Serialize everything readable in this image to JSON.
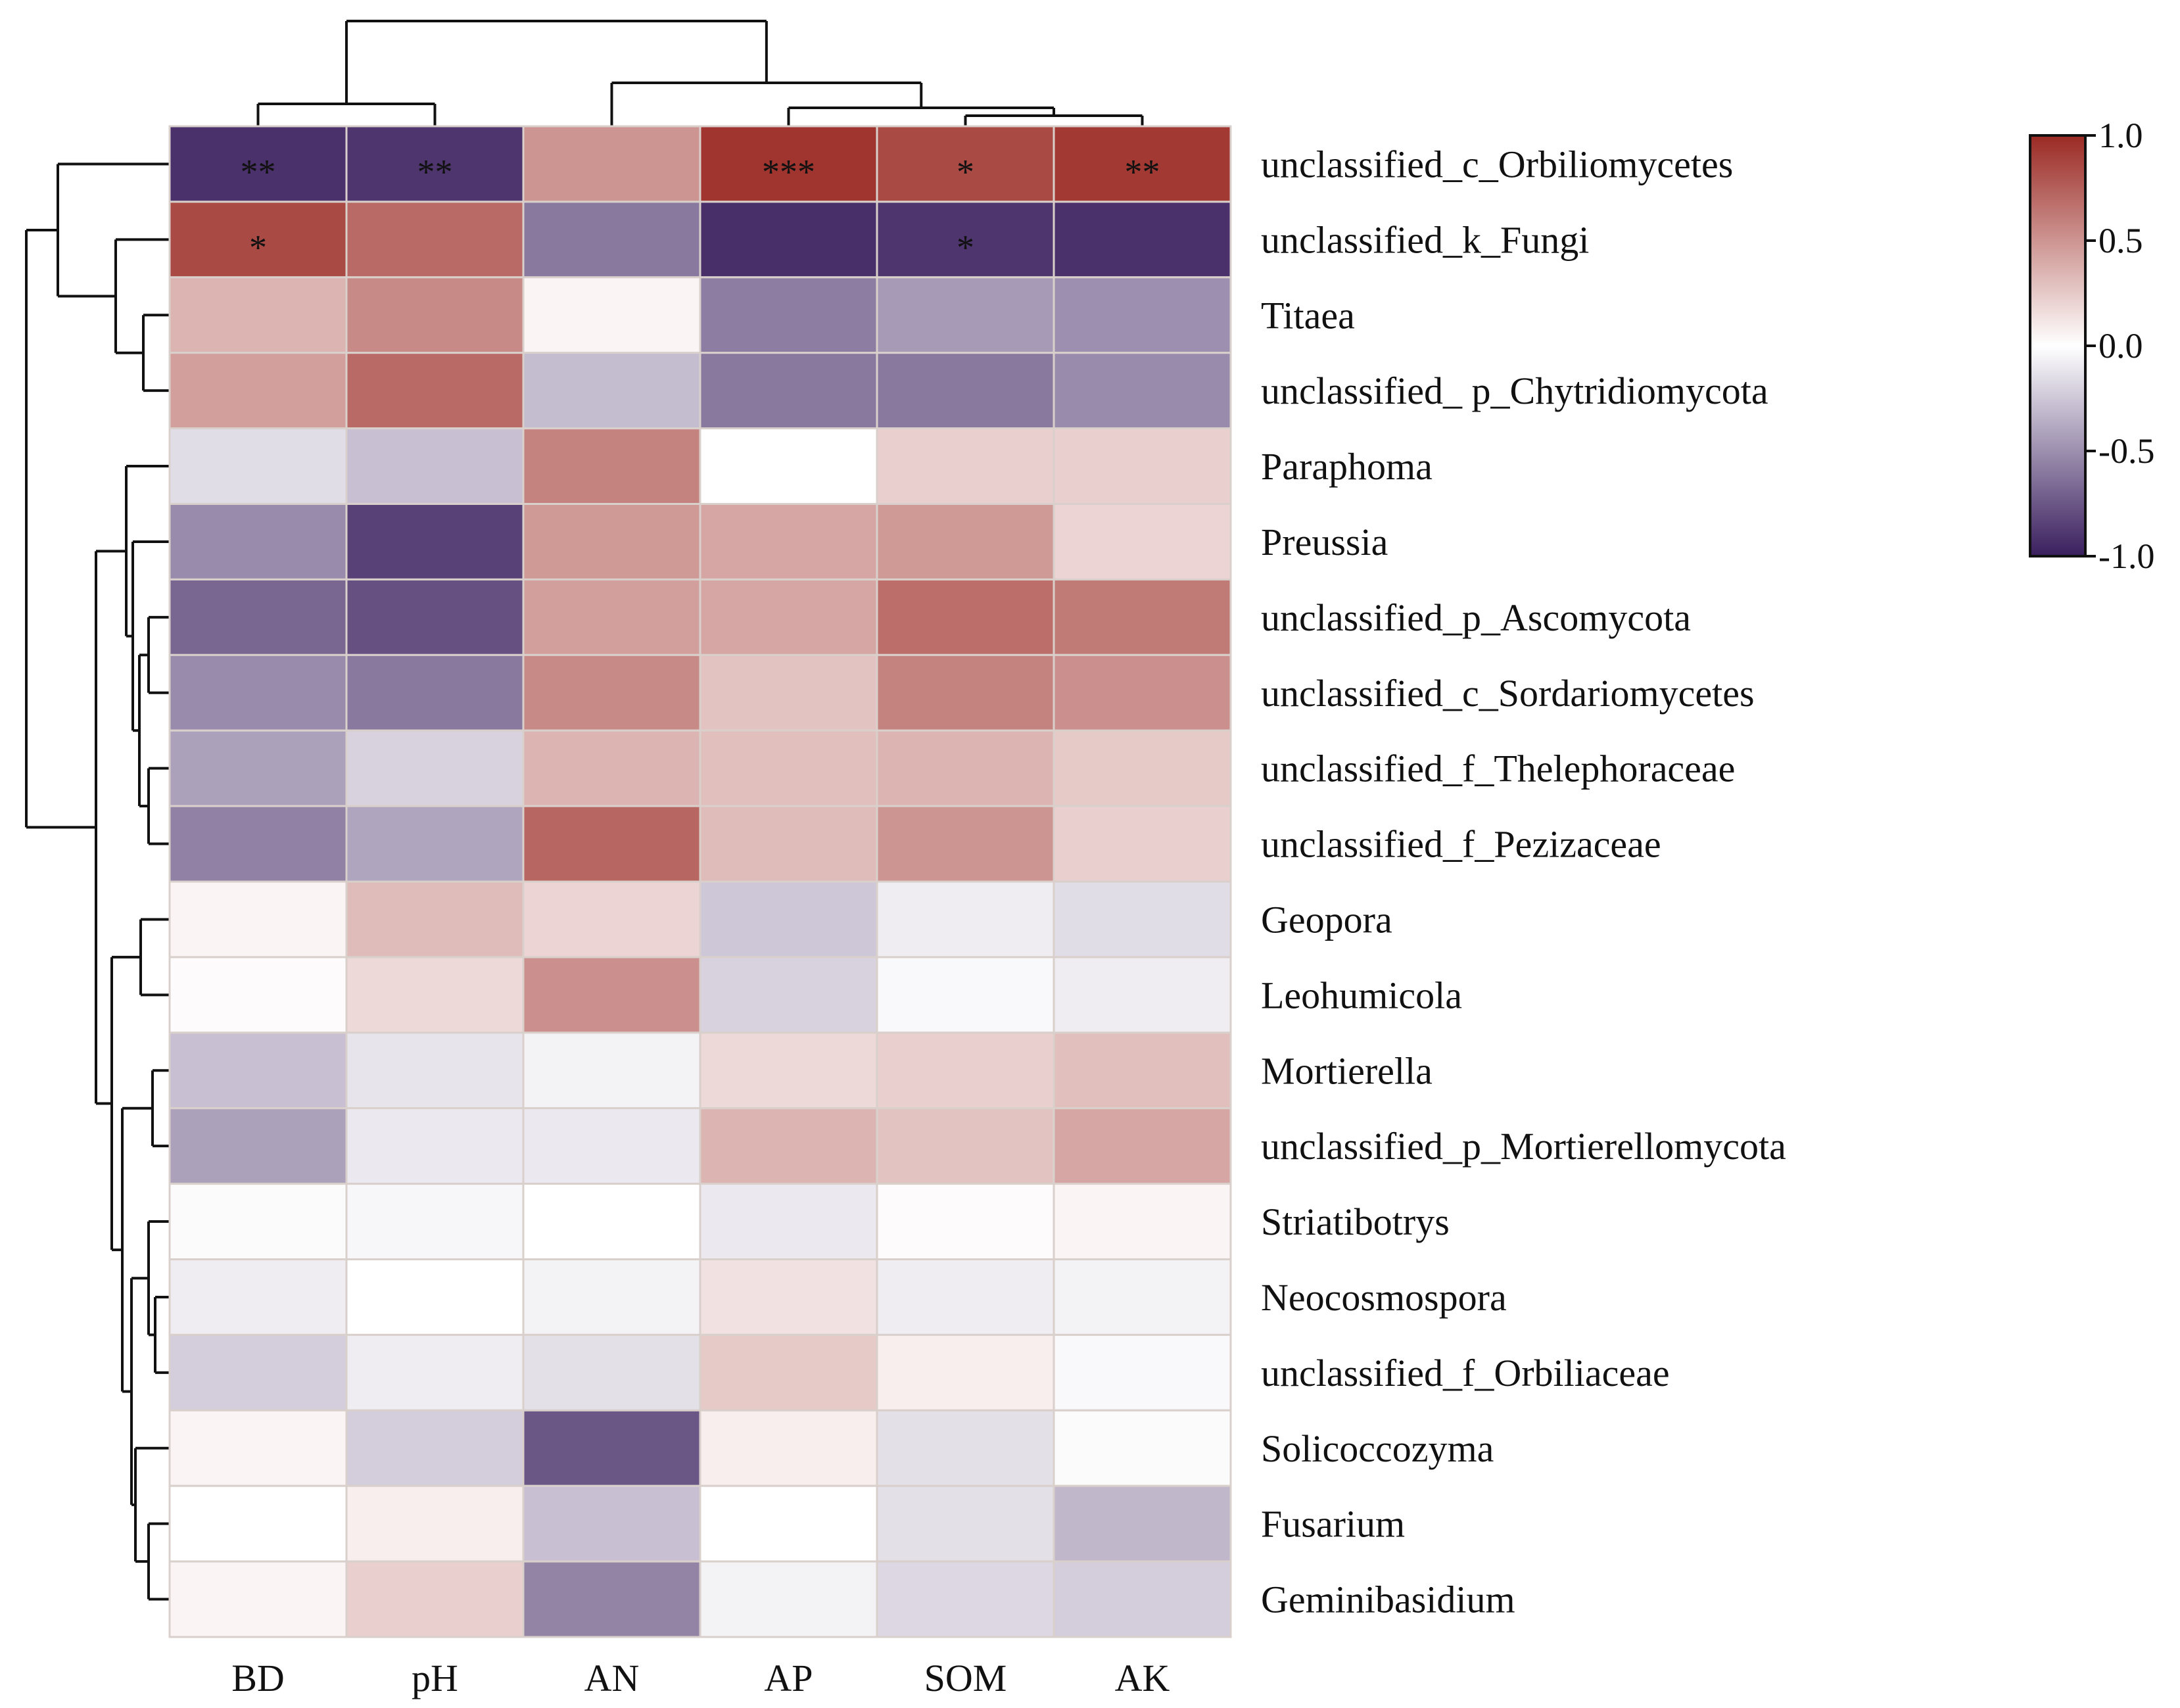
{
  "chart_data": {
    "type": "heatmap",
    "rows": [
      "unclassified_c_Orbiliomycetes",
      "unclassified_k_Fungi",
      "Titaea",
      "unclassified_ p_Chytridiomycota",
      "Paraphoma",
      "Preussia",
      "unclassified_p_Ascomycota",
      "unclassified_c_Sordariomycetes",
      "unclassified_f_Thelephoraceae",
      "unclassified_f_Pezizaceae",
      "Geopora",
      "Leohumicola",
      "Mortierella",
      "unclassified_p_Mortierellomycota",
      "Striatibotrys",
      "Neocosmospora",
      "unclassified_f_Orbiliaceae",
      "Solicoccozyma",
      "Fusarium",
      "Geminibasidium"
    ],
    "columns": [
      "BD",
      "pH",
      "AN",
      "AP",
      "SOM",
      "AK"
    ],
    "values": [
      [
        -0.92,
        -0.9,
        0.5,
        0.95,
        0.85,
        0.93
      ],
      [
        0.85,
        0.7,
        -0.6,
        -0.93,
        -0.9,
        -0.92
      ],
      [
        0.35,
        0.55,
        0.05,
        -0.58,
        -0.45,
        -0.5
      ],
      [
        0.45,
        0.7,
        -0.3,
        -0.6,
        -0.6,
        -0.52
      ],
      [
        -0.15,
        -0.28,
        0.58,
        0.0,
        0.22,
        0.22
      ],
      [
        -0.52,
        -0.85,
        0.48,
        0.42,
        0.48,
        0.2
      ],
      [
        -0.68,
        -0.78,
        0.45,
        0.42,
        0.68,
        0.62
      ],
      [
        -0.52,
        -0.6,
        0.55,
        0.28,
        0.58,
        0.52
      ],
      [
        -0.42,
        -0.2,
        0.35,
        0.3,
        0.35,
        0.25
      ],
      [
        -0.56,
        -0.4,
        0.72,
        0.32,
        0.5,
        0.22
      ],
      [
        0.05,
        0.32,
        0.2,
        -0.25,
        -0.08,
        -0.15
      ],
      [
        0.02,
        0.18,
        0.52,
        -0.2,
        -0.03,
        -0.08
      ],
      [
        -0.28,
        -0.12,
        -0.06,
        0.18,
        0.22,
        0.3
      ],
      [
        -0.42,
        -0.1,
        -0.1,
        0.35,
        0.28,
        0.42
      ],
      [
        -0.02,
        -0.04,
        0.0,
        -0.1,
        0.02,
        0.05
      ],
      [
        -0.08,
        0.0,
        -0.06,
        0.14,
        -0.08,
        -0.06
      ],
      [
        -0.22,
        -0.08,
        -0.14,
        0.25,
        0.08,
        -0.03
      ],
      [
        0.05,
        -0.22,
        -0.75,
        0.08,
        -0.14,
        -0.02
      ],
      [
        0.0,
        0.08,
        -0.28,
        0.0,
        -0.14,
        -0.32
      ],
      [
        0.05,
        0.22,
        -0.55,
        -0.06,
        -0.18,
        -0.22
      ]
    ],
    "significance": [
      [
        "**",
        "**",
        "",
        "***",
        "*",
        "**"
      ],
      [
        "*",
        "",
        "",
        "",
        "*",
        ""
      ],
      [
        "",
        "",
        "",
        "",
        "",
        ""
      ],
      [
        "",
        "",
        "",
        "",
        "",
        ""
      ],
      [
        "",
        "",
        "",
        "",
        "",
        ""
      ],
      [
        "",
        "",
        "",
        "",
        "",
        ""
      ],
      [
        "",
        "",
        "",
        "",
        "",
        ""
      ],
      [
        "",
        "",
        "",
        "",
        "",
        ""
      ],
      [
        "",
        "",
        "",
        "",
        "",
        ""
      ],
      [
        "",
        "",
        "",
        "",
        "",
        ""
      ],
      [
        "",
        "",
        "",
        "",
        "",
        ""
      ],
      [
        "",
        "",
        "",
        "",
        "",
        ""
      ],
      [
        "",
        "",
        "",
        "",
        "",
        ""
      ],
      [
        "",
        "",
        "",
        "",
        "",
        ""
      ],
      [
        "",
        "",
        "",
        "",
        "",
        ""
      ],
      [
        "",
        "",
        "",
        "",
        "",
        ""
      ],
      [
        "",
        "",
        "",
        "",
        "",
        ""
      ],
      [
        "",
        "",
        "",
        "",
        "",
        ""
      ],
      [
        "",
        "",
        "",
        "",
        "",
        ""
      ],
      [
        "",
        "",
        "",
        "",
        "",
        ""
      ]
    ],
    "color_scale": {
      "min": -1.0,
      "max": 1.0,
      "low_color": "#3a1f5e",
      "mid_color": "#ffffff",
      "high_color": "#9b2a24",
      "ticks": [
        "1.0",
        "0.5",
        "0.0",
        "-0.5",
        "-1.0"
      ]
    },
    "title": "",
    "xlabel": "",
    "ylabel": "",
    "legend_position": "top-right"
  }
}
